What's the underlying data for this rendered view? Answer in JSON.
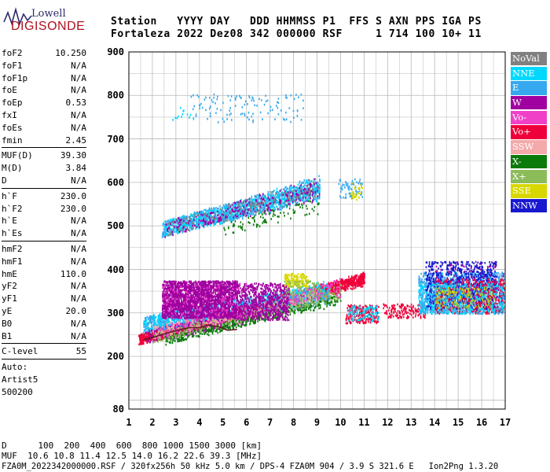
{
  "logo": {
    "line1": "Lowell",
    "line2": "DIGISONDE"
  },
  "header": {
    "labels": "Station   YYYY DAY   DDD HHMMSS P1  FFS S AXN PPS IGA PS",
    "values": "Fortaleza 2022 Dez08 342 000000 RSF     1 714 100 10+ 11"
  },
  "params": [
    {
      "group": [
        {
          "name": "foF2",
          "value": "10.250"
        },
        {
          "name": "foF1",
          "value": "N/A"
        },
        {
          "name": "foF1p",
          "value": "N/A"
        },
        {
          "name": "foE",
          "value": "N/A"
        },
        {
          "name": "foEp",
          "value": "0.53"
        },
        {
          "name": "fxI",
          "value": "N/A"
        },
        {
          "name": "foEs",
          "value": "N/A"
        },
        {
          "name": "fmin",
          "value": "2.45"
        }
      ]
    },
    {
      "group": [
        {
          "name": "MUF(D)",
          "value": "39.30"
        },
        {
          "name": "M(D)",
          "value": "3.84"
        },
        {
          "name": "D",
          "value": "N/A"
        }
      ]
    },
    {
      "group": [
        {
          "name": "h`F",
          "value": "230.0"
        },
        {
          "name": "h`F2",
          "value": "230.0"
        },
        {
          "name": "h`E",
          "value": "N/A"
        },
        {
          "name": "h`Es",
          "value": "N/A"
        }
      ]
    },
    {
      "group": [
        {
          "name": "hmF2",
          "value": "N/A"
        },
        {
          "name": "hmF1",
          "value": "N/A"
        },
        {
          "name": "hmE",
          "value": "110.0"
        },
        {
          "name": "yF2",
          "value": "N/A"
        },
        {
          "name": "yF1",
          "value": "N/A"
        },
        {
          "name": "yE",
          "value": "20.0"
        },
        {
          "name": "B0",
          "value": "N/A"
        },
        {
          "name": "B1",
          "value": "N/A"
        }
      ]
    },
    {
      "group": [
        {
          "name": "C-level",
          "value": "55"
        }
      ]
    }
  ],
  "auto_info": [
    "Auto:",
    "Artist5",
    "500200"
  ],
  "legend": [
    {
      "label": "NoVal",
      "color": "#808080"
    },
    {
      "label": "NNE",
      "color": "#00d8ff"
    },
    {
      "label": "E",
      "color": "#36a8ee"
    },
    {
      "label": "W",
      "color": "#a000a0"
    },
    {
      "label": "Vo-",
      "color": "#f040c8"
    },
    {
      "label": "Vo+",
      "color": "#f0003a"
    },
    {
      "label": "SSW",
      "color": "#f4aaaa"
    },
    {
      "label": "X-",
      "color": "#0a7a0a"
    },
    {
      "label": "X+",
      "color": "#8cbc5a"
    },
    {
      "label": "SSE",
      "color": "#d8d800"
    },
    {
      "label": "NNW",
      "color": "#1818d0"
    }
  ],
  "footer": {
    "line1": "D      100  200  400  600  800 1000 1500 3000 [km]",
    "line2": "MUF  10.6 10.8 11.4 12.5 14.0 16.2 22.6 39.3 [MHz]",
    "line3": "FZA0M_2022342000000.RSF / 320fx256h 50 kHz 5.0 km / DPS-4 FZA0M 904 / 3.9 S 321.6 E   Ion2Png 1.3.20"
  },
  "chart_data": {
    "type": "scatter",
    "title": "",
    "xlabel": "",
    "ylabel": "",
    "xlim": [
      1,
      17
    ],
    "ylim": [
      80,
      900
    ],
    "x_ticks": [
      "1",
      "2",
      "3",
      "4",
      "5",
      "6",
      "7",
      "8",
      "9",
      "10",
      "11",
      "12",
      "13",
      "14",
      "15",
      "16",
      "17"
    ],
    "y_ticks": [
      "80",
      "200",
      "300",
      "400",
      "500",
      "600",
      "700",
      "800",
      "900"
    ],
    "grid": true,
    "legend_position": "right",
    "trace_color": "#602020",
    "trace": [
      [
        1.6,
        238
      ],
      [
        2.0,
        243
      ],
      [
        2.4,
        250
      ],
      [
        2.8,
        256
      ],
      [
        3.2,
        262
      ],
      [
        3.6,
        266
      ],
      [
        4.0,
        266
      ],
      [
        4.4,
        272
      ],
      [
        4.8,
        268
      ],
      [
        5.2,
        260
      ],
      [
        5.6,
        262
      ]
    ],
    "clusters": [
      {
        "series": "Vo+",
        "xr": [
          1.4,
          11.0
        ],
        "yb": [
          228,
          252
        ],
        "slope": [
          14,
          15
        ],
        "n": 2600
      },
      {
        "series": "E",
        "xr": [
          1.6,
          9.5
        ],
        "yb": [
          256,
          292
        ],
        "slope": [
          8,
          10
        ],
        "n": 1400
      },
      {
        "series": "NNE",
        "xr": [
          1.6,
          9.5
        ],
        "yb": [
          262,
          298
        ],
        "slope": [
          8,
          10
        ],
        "n": 500
      },
      {
        "series": "W",
        "xr": [
          1.7,
          6.5
        ],
        "yb": [
          232,
          262
        ],
        "slope": [
          10,
          12
        ],
        "n": 400
      },
      {
        "series": "X-",
        "xr": [
          2.5,
          10.0
        ],
        "yb": [
          228,
          248
        ],
        "slope": [
          12,
          14
        ],
        "n": 500
      },
      {
        "series": "X+",
        "xr": [
          2.0,
          10.0
        ],
        "yb": [
          232,
          256
        ],
        "slope": [
          12,
          14
        ],
        "n": 400
      },
      {
        "series": "Vo-",
        "xr": [
          2.0,
          10.0
        ],
        "yb": [
          240,
          270
        ],
        "slope": [
          12,
          14
        ],
        "n": 350
      },
      {
        "series": "SSW",
        "xr": [
          2.0,
          9.0
        ],
        "yb": [
          240,
          270
        ],
        "slope": [
          12,
          14
        ],
        "n": 250
      },
      {
        "series": "Vo+",
        "xr": [
          10.2,
          11.6
        ],
        "yb": [
          278,
          320
        ],
        "slope": [
          0,
          0
        ],
        "n": 240
      },
      {
        "series": "NNE",
        "xr": [
          10.3,
          11.6
        ],
        "yb": [
          282,
          318
        ],
        "slope": [
          0,
          0
        ],
        "n": 100
      },
      {
        "series": "Vo+",
        "xr": [
          11.8,
          13.6
        ],
        "yb": [
          290,
          322
        ],
        "slope": [
          0,
          0
        ],
        "n": 160
      },
      {
        "series": "E",
        "xr": [
          13.3,
          17.0
        ],
        "yb": [
          300,
          395
        ],
        "slope": [
          0,
          0
        ],
        "n": 1500
      },
      {
        "series": "NNW",
        "xr": [
          13.6,
          16.6
        ],
        "yb": [
          310,
          420
        ],
        "slope": [
          0,
          0
        ],
        "n": 800
      },
      {
        "series": "Vo+",
        "xr": [
          14.0,
          17.0
        ],
        "yb": [
          300,
          380
        ],
        "slope": [
          0,
          0
        ],
        "n": 500
      },
      {
        "series": "NNE",
        "xr": [
          13.3,
          17.0
        ],
        "yb": [
          300,
          370
        ],
        "slope": [
          0,
          0
        ],
        "n": 400
      },
      {
        "series": "W",
        "xr": [
          14.0,
          17.0
        ],
        "yb": [
          320,
          420
        ],
        "slope": [
          0,
          0
        ],
        "n": 100
      },
      {
        "series": "X+",
        "xr": [
          14.0,
          16.5
        ],
        "yb": [
          310,
          360
        ],
        "slope": [
          0,
          0
        ],
        "n": 100
      },
      {
        "series": "SSE",
        "xr": [
          14.0,
          16.5
        ],
        "yb": [
          310,
          360
        ],
        "slope": [
          0,
          0
        ],
        "n": 80
      },
      {
        "series": "W",
        "xr": [
          2.4,
          5.6
        ],
        "yb": [
          290,
          375
        ],
        "slope": [
          0,
          0
        ],
        "n": 2400
      },
      {
        "series": "W",
        "xr": [
          5.6,
          7.8
        ],
        "yb": [
          285,
          370
        ],
        "slope": [
          0,
          0
        ],
        "n": 700
      },
      {
        "series": "Vo-",
        "xr": [
          2.4,
          6.0
        ],
        "yb": [
          290,
          370
        ],
        "slope": [
          0,
          0
        ],
        "n": 150
      },
      {
        "series": "SSE",
        "xr": [
          7.6,
          8.6
        ],
        "yb": [
          362,
          392
        ],
        "slope": [
          0,
          0
        ],
        "n": 160
      },
      {
        "series": "X+",
        "xr": [
          7.6,
          9.2
        ],
        "yb": [
          340,
          375
        ],
        "slope": [
          0,
          0
        ],
        "n": 80
      },
      {
        "series": "E",
        "xr": [
          2.4,
          9.1
        ],
        "yb": [
          476,
          512
        ],
        "slope": [
          12,
          16
        ],
        "n": 1300
      },
      {
        "series": "NNE",
        "xr": [
          2.4,
          9.1
        ],
        "yb": [
          476,
          512
        ],
        "slope": [
          12,
          16
        ],
        "n": 500
      },
      {
        "series": "W",
        "xr": [
          2.5,
          9.1
        ],
        "yb": [
          476,
          512
        ],
        "slope": [
          12,
          16
        ],
        "n": 300
      },
      {
        "series": "NoVal",
        "xr": [
          2.5,
          9.1
        ],
        "yb": [
          478,
          512
        ],
        "slope": [
          12,
          16
        ],
        "n": 160
      },
      {
        "series": "X-",
        "xr": [
          5.0,
          9.1
        ],
        "yb": [
          478,
          508
        ],
        "slope": [
          12,
          16
        ],
        "n": 90
      },
      {
        "series": "E",
        "xr": [
          9.9,
          10.9
        ],
        "yb": [
          564,
          610
        ],
        "slope": [
          0,
          0
        ],
        "n": 70
      },
      {
        "series": "SSE",
        "xr": [
          10.4,
          10.9
        ],
        "yb": [
          560,
          600
        ],
        "slope": [
          0,
          0
        ],
        "n": 30
      },
      {
        "series": "E",
        "xr": [
          3.6,
          8.4
        ],
        "yb": [
          740,
          805
        ],
        "slope": [
          0,
          0
        ],
        "n": 120
      },
      {
        "series": "NNE",
        "xr": [
          2.8,
          3.8
        ],
        "yb": [
          740,
          775
        ],
        "slope": [
          0,
          0
        ],
        "n": 14
      }
    ]
  }
}
